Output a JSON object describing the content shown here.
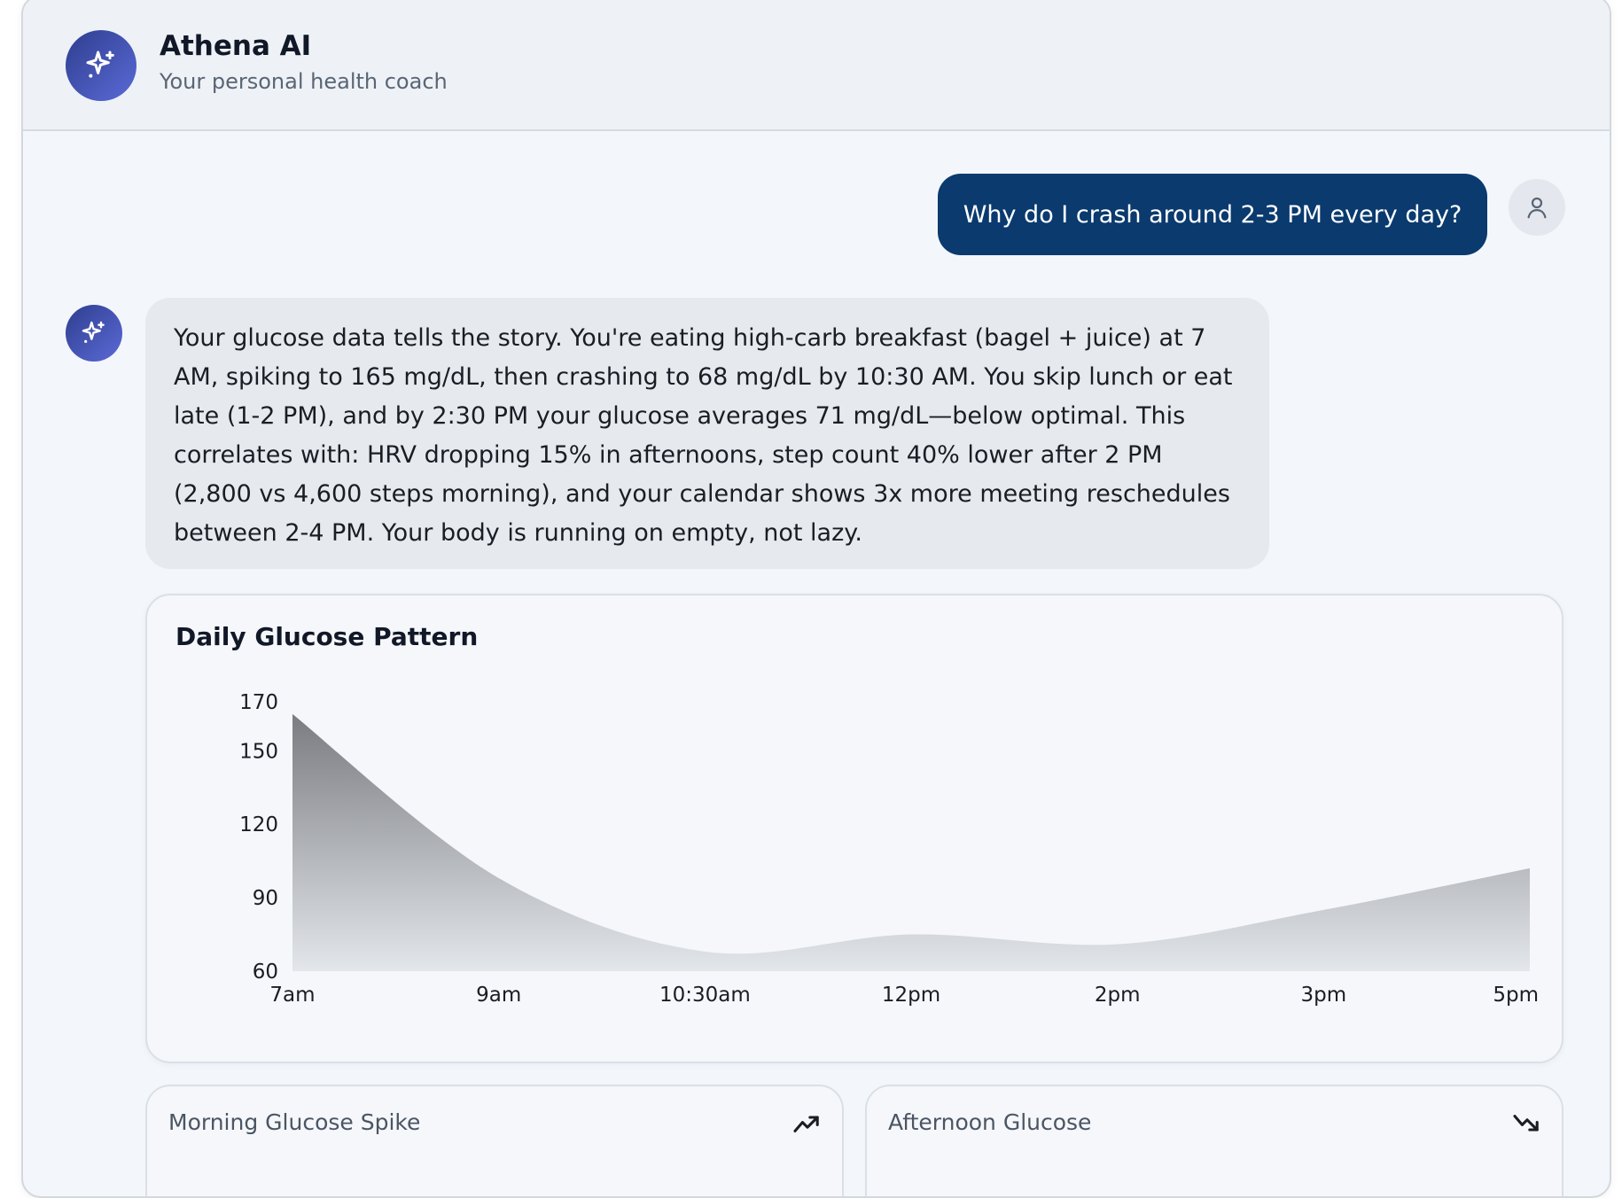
{
  "header": {
    "app_title": "Athena AI",
    "app_subtitle": "Your personal health coach",
    "logo_icon": "sparkle-icon"
  },
  "messages": {
    "user_message": "Why do I crash around 2-3 PM every day?",
    "user_avatar_icon": "user-icon",
    "ai_avatar_icon": "sparkle-icon",
    "ai_response": "Your glucose data tells the story. You're eating high-carb breakfast (bagel + juice) at 7 AM, spiking to 165 mg/dL, then crashing to 68 mg/dL by 10:30 AM. You skip lunch or eat late (1-2 PM), and by 2:30 PM your glucose averages 71 mg/dL—below optimal. This correlates with: HRV dropping 15% in afternoons, step count 40% lower after 2 PM (2,800 vs 4,600 steps morning), and your calendar shows 3x more meeting reschedules between 2-4 PM. Your body is running on empty, not lazy."
  },
  "chart_data": {
    "type": "area",
    "title": "Daily Glucose Pattern",
    "x": [
      "7am",
      "9am",
      "10:30am",
      "12pm",
      "2pm",
      "3pm",
      "5pm"
    ],
    "y_ticks": [
      60,
      90,
      120,
      150,
      170
    ],
    "ylim": [
      60,
      170
    ],
    "series": [
      {
        "values": [
          165,
          98,
          68,
          75,
          71,
          85,
          102
        ]
      }
    ],
    "grid": false,
    "legend": false,
    "fill_gradient": [
      "#7a7c82",
      "#e3e6eb"
    ]
  },
  "stats": [
    {
      "label": "Morning Glucose Spike",
      "icon": "trending-up-icon"
    },
    {
      "label": "Afternoon Glucose",
      "icon": "trending-down-icon"
    }
  ],
  "colors": {
    "accent": "#0a3a6e",
    "avatar_gradient_start": "#2f3e8f",
    "avatar_gradient_end": "#5a6ad6"
  }
}
